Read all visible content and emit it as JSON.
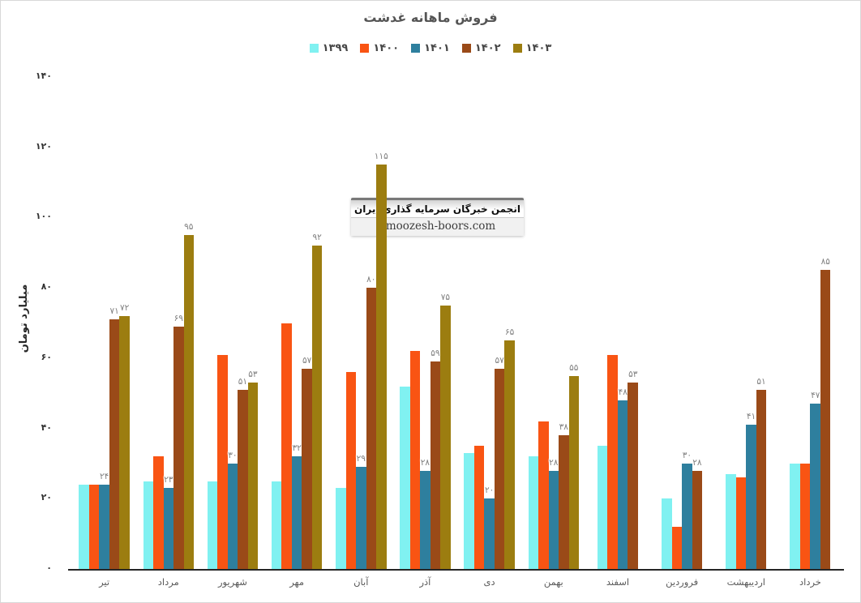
{
  "chart_data": {
    "type": "bar",
    "title": "فروش ماهانه غدشت",
    "ylabel": "میلیارد تومان",
    "xlabel": "",
    "ylim": [
      0,
      140
    ],
    "yticks": [
      0,
      20,
      40,
      60,
      80,
      100,
      120,
      140
    ],
    "grid": false,
    "legend_position": "top",
    "digit_style": "persian",
    "categories": [
      "تیر",
      "مرداد",
      "شهریور",
      "مهر",
      "آبان",
      "آذر",
      "دی",
      "بهمن",
      "اسفند",
      "فروردین",
      "اردیبهشت",
      "خرداد"
    ],
    "series": [
      {
        "name": "۱۳۹۹",
        "year": 1399,
        "color": "#80F1F1",
        "show_labels": false,
        "values": [
          24,
          25,
          25,
          25,
          23,
          52,
          33,
          32,
          35,
          20,
          27,
          30
        ]
      },
      {
        "name": "۱۴۰۰",
        "year": 1400,
        "color": "#F95413",
        "show_labels": false,
        "values": [
          24,
          32,
          61,
          70,
          56,
          62,
          35,
          42,
          61,
          12,
          26,
          30
        ]
      },
      {
        "name": "۱۴۰۱",
        "year": 1401,
        "color": "#2E7F9E",
        "show_labels": true,
        "values": [
          24,
          23,
          30,
          32,
          29,
          28,
          20,
          28,
          48,
          30,
          41,
          47
        ]
      },
      {
        "name": "۱۴۰۲",
        "year": 1402,
        "color": "#9A4A18",
        "show_labels": true,
        "values": [
          71,
          69,
          51,
          57,
          80,
          59,
          57,
          38,
          53,
          28,
          51,
          85
        ]
      },
      {
        "name": "۱۴۰۳",
        "year": 1403,
        "color": "#9C7D10",
        "show_labels": true,
        "values": [
          72,
          95,
          53,
          92,
          115,
          75,
          65,
          55,
          null,
          null,
          null,
          null
        ]
      }
    ]
  },
  "watermark": {
    "line1": "انجمن خبرگان سرمایه گذاری ایران",
    "line2": "amoozesh-boors.com"
  },
  "colors": {
    "axis_line": "#262626",
    "tick_text": "#333333",
    "data_label": "#7f7f7f",
    "title_text": "#555555"
  }
}
